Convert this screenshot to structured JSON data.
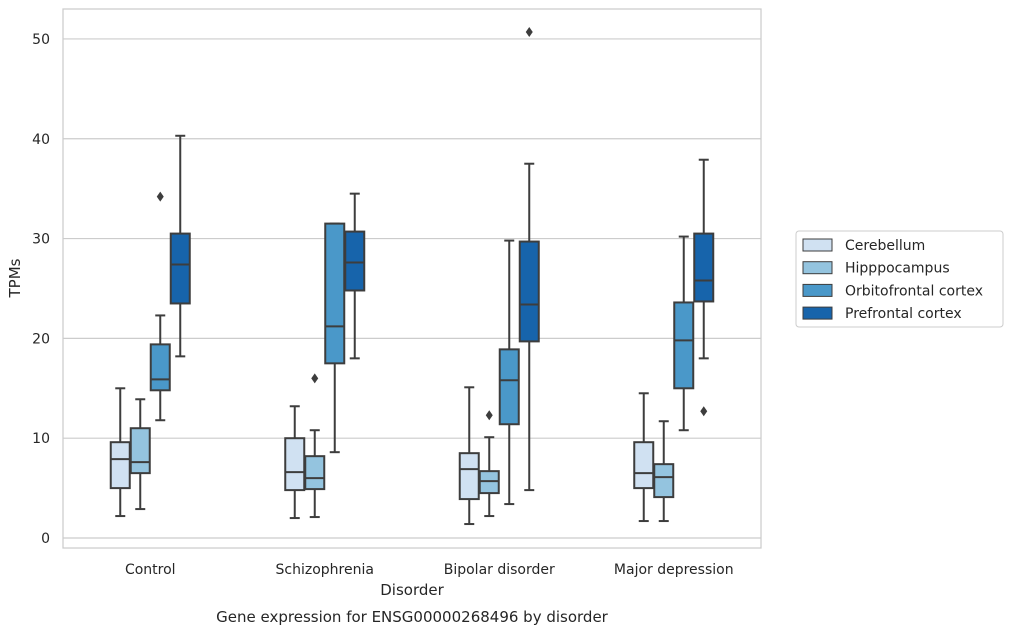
{
  "chart_data": {
    "type": "box",
    "title": "",
    "caption": "Gene expression for ENSG00000268496 by disorder",
    "xlabel": "Disorder",
    "ylabel": "TPMs",
    "ylim": [
      -1,
      53
    ],
    "yticks": [
      0,
      10,
      20,
      30,
      40,
      50
    ],
    "grid": "horizontal",
    "legend_position": "right",
    "categories": [
      "Control",
      "Schizophrenia",
      "Bipolar disorder",
      "Major depression"
    ],
    "series": [
      {
        "name": "Cerebellum",
        "color": "#d0e1f2",
        "boxes": [
          {
            "whisker_low": 2.2,
            "q1": 5.0,
            "median": 7.9,
            "q3": 9.6,
            "whisker_high": 15.0,
            "outliers": []
          },
          {
            "whisker_low": 2.0,
            "q1": 4.8,
            "median": 6.6,
            "q3": 10.0,
            "whisker_high": 13.2,
            "outliers": []
          },
          {
            "whisker_low": 1.4,
            "q1": 3.9,
            "median": 6.9,
            "q3": 8.5,
            "whisker_high": 15.1,
            "outliers": []
          },
          {
            "whisker_low": 1.7,
            "q1": 5.0,
            "median": 6.5,
            "q3": 9.6,
            "whisker_high": 14.5,
            "outliers": []
          }
        ]
      },
      {
        "name": "Hipppocampus",
        "color": "#94c4df",
        "boxes": [
          {
            "whisker_low": 2.9,
            "q1": 6.5,
            "median": 7.6,
            "q3": 11.0,
            "whisker_high": 13.9,
            "outliers": []
          },
          {
            "whisker_low": 2.1,
            "q1": 4.9,
            "median": 6.0,
            "q3": 8.2,
            "whisker_high": 10.8,
            "outliers": [
              16.0
            ]
          },
          {
            "whisker_low": 2.2,
            "q1": 4.5,
            "median": 5.7,
            "q3": 6.7,
            "whisker_high": 10.1,
            "outliers": [
              12.3
            ]
          },
          {
            "whisker_low": 1.7,
            "q1": 4.1,
            "median": 6.1,
            "q3": 7.4,
            "whisker_high": 11.7,
            "outliers": []
          }
        ]
      },
      {
        "name": "Orbitofrontal cortex",
        "color": "#4a98c9",
        "boxes": [
          {
            "whisker_low": 11.8,
            "q1": 14.8,
            "median": 15.9,
            "q3": 19.4,
            "whisker_high": 22.3,
            "outliers": [
              34.2
            ]
          },
          {
            "whisker_low": 8.6,
            "q1": 17.5,
            "median": 21.2,
            "q3": 31.5,
            "whisker_high": 31.5,
            "outliers": []
          },
          {
            "whisker_low": 3.4,
            "q1": 11.4,
            "median": 15.8,
            "q3": 18.9,
            "whisker_high": 29.8,
            "outliers": []
          },
          {
            "whisker_low": 10.8,
            "q1": 15.0,
            "median": 19.8,
            "q3": 23.6,
            "whisker_high": 30.2,
            "outliers": []
          }
        ]
      },
      {
        "name": "Prefrontal cortex",
        "color": "#1764ab",
        "boxes": [
          {
            "whisker_low": 18.2,
            "q1": 23.5,
            "median": 27.4,
            "q3": 30.5,
            "whisker_high": 40.3,
            "outliers": []
          },
          {
            "whisker_low": 18.0,
            "q1": 24.8,
            "median": 27.6,
            "q3": 30.7,
            "whisker_high": 34.5,
            "outliers": []
          },
          {
            "whisker_low": 4.8,
            "q1": 19.7,
            "median": 23.4,
            "q3": 29.7,
            "whisker_high": 37.5,
            "outliers": [
              50.7
            ]
          },
          {
            "whisker_low": 18.0,
            "q1": 23.7,
            "median": 25.8,
            "q3": 30.5,
            "whisker_high": 37.9,
            "outliers": [
              12.7
            ]
          }
        ]
      }
    ]
  }
}
